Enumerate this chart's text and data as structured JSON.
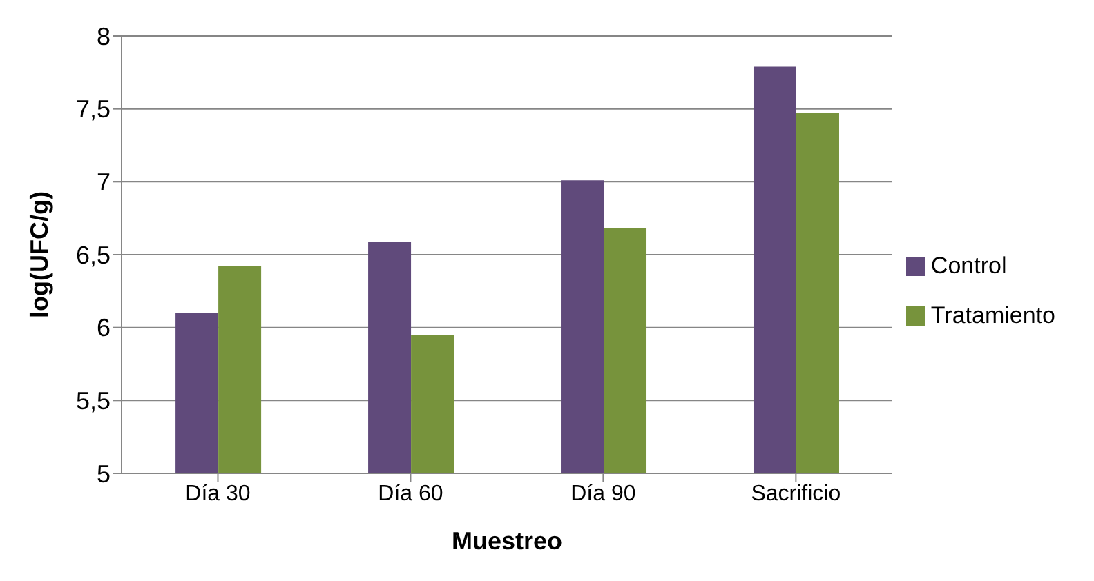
{
  "chart_data": {
    "type": "bar",
    "xlabel": "Muestreo",
    "ylabel": "log(UFC/g)",
    "categories": [
      "Día 30",
      "Día 60",
      "Día 90",
      "Sacrificio"
    ],
    "series": [
      {
        "name": "Control",
        "color": "#604a7b",
        "values": [
          6.1,
          6.59,
          7.01,
          7.79
        ]
      },
      {
        "name": "Tratamiento",
        "color": "#77933c",
        "values": [
          6.42,
          5.95,
          6.68,
          7.47
        ]
      }
    ],
    "ylim": [
      5,
      8
    ],
    "yticks": [
      {
        "value": 5,
        "label": "5"
      },
      {
        "value": 5.5,
        "label": "5,5"
      },
      {
        "value": 6,
        "label": "6"
      },
      {
        "value": 6.5,
        "label": "6,5"
      },
      {
        "value": 7,
        "label": "7"
      },
      {
        "value": 7.5,
        "label": "7,5"
      },
      {
        "value": 8,
        "label": "8"
      }
    ],
    "grid": "y",
    "legend": "right"
  }
}
